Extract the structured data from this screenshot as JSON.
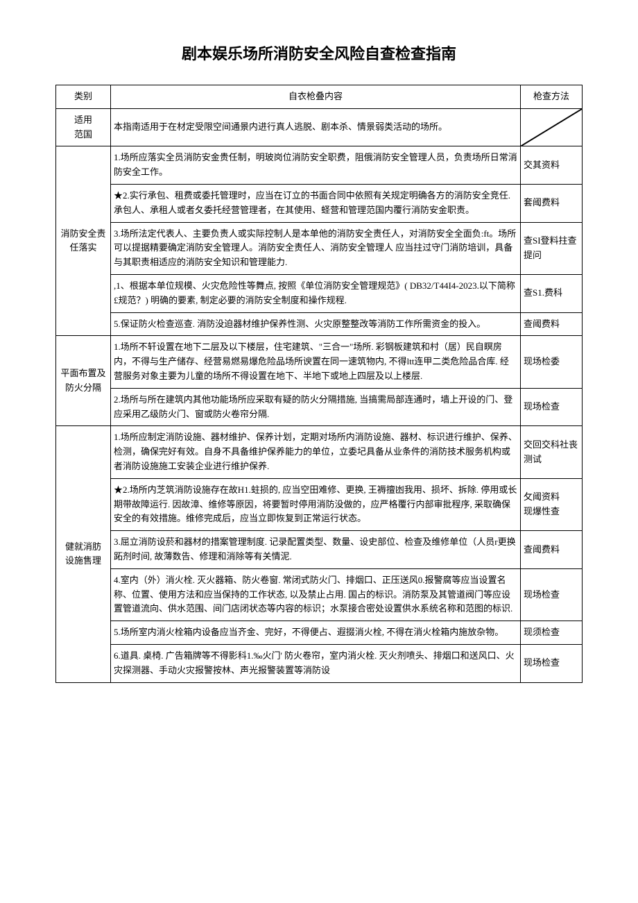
{
  "title": "剧本娱乐场所消防安全风险自查检查指南",
  "header": {
    "category": "类别",
    "content": "自衣枪叠内容",
    "method": "枪查方法"
  },
  "rows": [
    {
      "category": "适用\n范国",
      "content": "本指南适用于在材定受限空间通景内进行真人逃脱、剧本杀、情景弱类活动的场所。",
      "method": "SLASH",
      "catRowspan": 1
    },
    {
      "category": "消防安全责任落实",
      "content": "1.场所应落实全员消防安金贵任制，明玻岗位消防安全职费，阻俄消防安全管理人员，负责场所日常消防安全工作。",
      "method": "交其资料",
      "catRowspan": 5
    },
    {
      "content": "★2.实行承包、租费或委托管理时，应当在订立的书面合同中依照有关规定明确各方的消防安全竞任. 承包人、承租人或者夂委托经营管理者，在其使用、蛏营和管理范国内覆行消防安金职责。",
      "method": "套阈费料"
    },
    {
      "content": "3.场所法定代表人、主要负责人或实际控制人是本单他的消防安全责任人，对消防安全全面负:ft。场所可以提据精要确定消防安全管理人。消防安全责任人、消防安全管理人 应当拄过守门消防培训，具备与其职责相适应的消防安全知识和管理能力.",
      "method": "查SI登料拄查提问"
    },
    {
      "content": ",1、根据本单位规模、火灾危险性等舞点, 按照《单位消防安全管理规范》( DB32/T44I4-2023.以下简称£规范？) 明确的要素, 制定必要的消防安全制度和操作规程.",
      "method": "查S1.费科"
    },
    {
      "content": "5.保证防火检查巡查. 消防没迫器材维护保养性测、火灾原整整改等消防工作所需资金的投入。",
      "method": "查阈费料"
    },
    {
      "category": "平面布置及防火分隔",
      "content": "1.场所不轩设置在地下二层及以下楼层，住宅建筑、\"三合一\"场所. 彩钢板建筑和村（居）民自瞑房内，不得与生产储存、经营易燃易爆危险品场所谀置在同一速筑物内, 不得ltt连甲二类危险品合库. 经营服务对象主要为儿童的场所不得设置在地下、半地下或地上四层及以上楼层.",
      "method": "现场检委",
      "catRowspan": 2
    },
    {
      "content": "2.场所与所在建筑内其他功能场所应采取有疑的防火分隔措施, 当搞需局部连通时，墙上开设的门、登应采用乙级防火门、窗或防火卷帘分隔.",
      "method": "现场检查"
    },
    {
      "category": "健就消肪\n设施售理",
      "content": "1.场所应制定消防设施、器材维护、保养计划，定期对场所内消防设施、器材、标识进行维护、保养、检测，确保完好有效。自身不具备维护保养能力的单位，立委圮具备从业条件的消防技术服务机构或者消防设施施工安装企业进行维护保养.",
      "method": "交回交科社丧测试",
      "catRowspan": 6
    },
    {
      "content": "★2.场所内芝筑消防设施存在故H1.蛀损的, 应当空田难修、更换, 王褥擅凼我用、损坏、拆除. 停用或长期带故障运行. 因故漳、维修等原因，将要暂时停用消防没做的，应严格覆行内部审批程序, 采取确保安全的有效措施。维修完成后，应当立即恢复到正常运行状态。",
      "method": "攵阈资料\n现爆性查"
    },
    {
      "content": "3.屈立消防设菸和器材的措案管理制度. 记录配置类型、数量、设史部位、检查及维修单位（人员r更换跖剂时间, 故薄数告、修理和消除等有关情泥.",
      "method": "查阈费料"
    },
    {
      "content": "4.室内（外）消火栓. 灭火器箱、防火卷窗. 常闭式防火门、排烟口、正压送风0.报警腐等应当设置名称、位置、使用方法和应当保持的工作状态, 以及禁止占用. 国占的标识。消防泵及其管道阀门等应设置管道流向、供水范围、间门店闭状态等内容的标识；水泵接合密处设置供水系统名称和范图的标识.",
      "method": "现场检查"
    },
    {
      "content": "5.场所室内消火栓箱内设备应当齐金、完好，不得便占、遐掇消火栓, 不得在消火栓箱内施放杂物。",
      "method": "现须检查"
    },
    {
      "content": "6.道具. 桌椅. 广告箱牌等不得影科1.‰火门' 防火卷帘，室内消火栓. 灭火剂喷头、排烟口和送风口、火灾探测器、手动火灾报警按林、声光报警装置等消防设",
      "method": "现场检查"
    }
  ]
}
